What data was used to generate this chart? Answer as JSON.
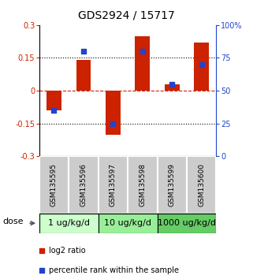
{
  "title": "GDS2924 / 15717",
  "samples": [
    "GSM135595",
    "GSM135596",
    "GSM135597",
    "GSM135598",
    "GSM135599",
    "GSM135600"
  ],
  "log2_ratio": [
    -0.09,
    0.14,
    -0.2,
    0.25,
    0.03,
    0.22
  ],
  "percentile_rank": [
    35,
    80,
    25,
    80,
    55,
    70
  ],
  "ylim_left": [
    -0.3,
    0.3
  ],
  "ylim_right": [
    0,
    100
  ],
  "yticks_left": [
    -0.3,
    -0.15,
    0,
    0.15,
    0.3
  ],
  "yticks_right": [
    0,
    25,
    50,
    75,
    100
  ],
  "ytick_labels_right": [
    "0",
    "25",
    "50",
    "75",
    "100%"
  ],
  "hlines": [
    -0.15,
    0,
    0.15
  ],
  "bar_color": "#cc2200",
  "dot_color": "#2244cc",
  "dose_groups": [
    {
      "label": "1 ug/kg/d",
      "indices": [
        0,
        1
      ],
      "color": "#ccffcc"
    },
    {
      "label": "10 ug/kg/d",
      "indices": [
        2,
        3
      ],
      "color": "#99ee99"
    },
    {
      "label": "1000 ug/kg/d",
      "indices": [
        4,
        5
      ],
      "color": "#66cc66"
    }
  ],
  "sample_bg_color": "#cccccc",
  "dose_label": "dose",
  "legend_bar_label": "log2 ratio",
  "legend_dot_label": "percentile rank within the sample",
  "bar_width": 0.5,
  "title_fontsize": 10,
  "tick_fontsize": 7,
  "sample_fontsize": 6.5,
  "dose_fontsize": 8,
  "legend_fontsize": 7
}
